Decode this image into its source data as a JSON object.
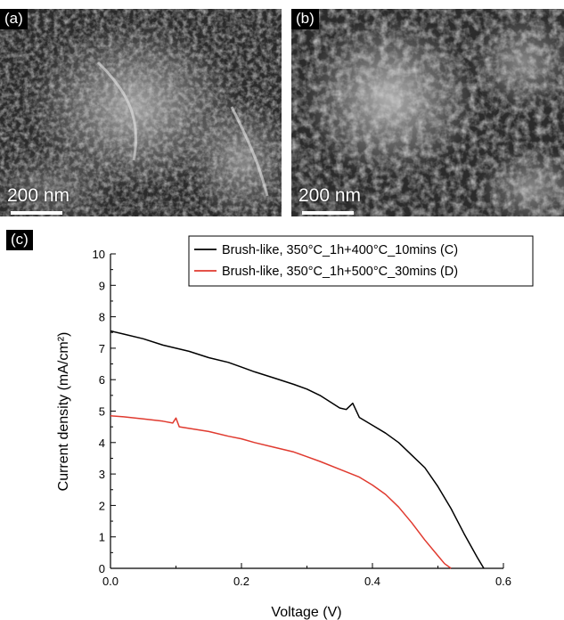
{
  "panels": {
    "a": {
      "label": "(a)",
      "scale_text": "200 nm"
    },
    "b": {
      "label": "(b)",
      "scale_text": "200 nm"
    },
    "c": {
      "label": "(c)"
    }
  },
  "colors": {
    "black_series": "#000000",
    "red_series": "#e03a2f"
  },
  "chart_data": {
    "type": "line",
    "xlabel": "Voltage (V)",
    "ylabel": "Current density (mA/cm²)",
    "xlim": [
      0,
      0.6
    ],
    "ylim": [
      0,
      10
    ],
    "xticks": [
      "0.0",
      "0.2",
      "0.4",
      "0.6"
    ],
    "yticks": [
      "0",
      "1",
      "2",
      "3",
      "4",
      "5",
      "6",
      "7",
      "8",
      "9",
      "10"
    ],
    "grid": false,
    "legend": "top-right",
    "series": [
      {
        "name": "Brush-like, 350°C_1h+400°C_10mins (C)",
        "color": "#000000",
        "x": [
          0,
          0.02,
          0.05,
          0.08,
          0.1,
          0.12,
          0.15,
          0.18,
          0.2,
          0.22,
          0.25,
          0.28,
          0.3,
          0.32,
          0.35,
          0.36,
          0.37,
          0.38,
          0.4,
          0.42,
          0.44,
          0.46,
          0.48,
          0.5,
          0.52,
          0.54,
          0.56,
          0.57
        ],
        "y": [
          7.55,
          7.45,
          7.3,
          7.1,
          7.0,
          6.9,
          6.7,
          6.55,
          6.4,
          6.25,
          6.05,
          5.85,
          5.7,
          5.5,
          5.1,
          5.05,
          5.25,
          4.8,
          4.55,
          4.3,
          4.0,
          3.6,
          3.2,
          2.6,
          1.9,
          1.1,
          0.35,
          0
        ]
      },
      {
        "name": "Brush-like, 350°C_1h+500°C_30mins (D)",
        "color": "#e03a2f",
        "x": [
          0,
          0.02,
          0.05,
          0.08,
          0.095,
          0.1,
          0.105,
          0.12,
          0.15,
          0.18,
          0.2,
          0.22,
          0.25,
          0.28,
          0.3,
          0.32,
          0.35,
          0.38,
          0.4,
          0.42,
          0.44,
          0.46,
          0.48,
          0.5,
          0.51,
          0.52
        ],
        "y": [
          4.85,
          4.82,
          4.75,
          4.68,
          4.62,
          4.78,
          4.5,
          4.45,
          4.35,
          4.2,
          4.12,
          4.0,
          3.85,
          3.7,
          3.55,
          3.4,
          3.15,
          2.9,
          2.65,
          2.35,
          1.95,
          1.45,
          0.9,
          0.4,
          0.15,
          0
        ]
      }
    ]
  }
}
